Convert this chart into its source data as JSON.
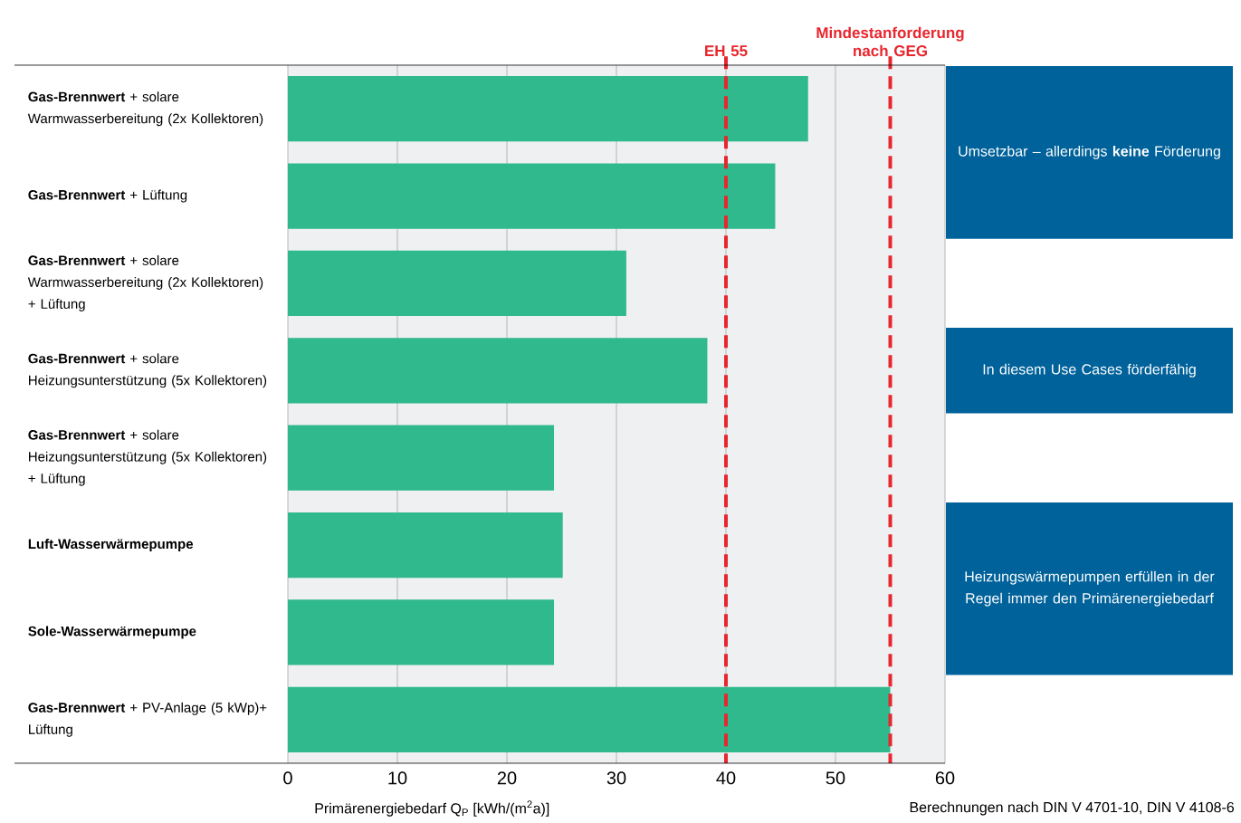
{
  "chart_data": {
    "type": "bar",
    "orientation": "horizontal",
    "categories": [
      "**Gas-Brennwert** + solare Warmwasserbereitung (2x Kollektoren)",
      "**Gas-Brennwert** + Lüftung",
      "**Gas-Brennwert** + solare Warmwasserbereitung (2x Kollektoren) + Lüftung",
      "**Gas-Brennwert** + solare Heizungsunterstützung (5x Kollektoren)",
      "**Gas-Brennwert** + solare Heizungsunterstützung (5x Kollektoren) + Lüftung",
      "**Luft-Wasserwärmepumpe**",
      "**Sole-Wasserwärmepumpe**",
      "**Gas-Brennwert** + PV-Anlage (5 kWp)+ Lüftung"
    ],
    "values": [
      47.5,
      44.5,
      30.9,
      38.3,
      24.3,
      25.1,
      24.3,
      55.0
    ],
    "color": "#2fb98c",
    "xlim": [
      0,
      60
    ],
    "xticks": [
      0,
      10,
      20,
      30,
      40,
      50,
      60
    ],
    "grid": "x",
    "xlabel": "Primärenergiebedarf Q$_{P}$ [kWh/(m$^{2}$a)]",
    "ref_lines": [
      {
        "axis": "x",
        "value": 40,
        "label": "EH 55",
        "color": "#e8262e",
        "line_style": "dashed"
      },
      {
        "axis": "x",
        "value": 55,
        "label": "Mindestanforderung nach GEG",
        "color": "#e8262e",
        "line_style": "dashed"
      }
    ],
    "annotations": [
      "Umsetzbar – allerdings **keine** Förderung",
      "In diesem Use Cases förderfähig",
      "Heizungswärmepumpen erfüllen in der Regel immer den Primärenergiebedarf",
      "Berechnungen nach DIN V 4701-10, DIN V 4108-6"
    ]
  }
}
